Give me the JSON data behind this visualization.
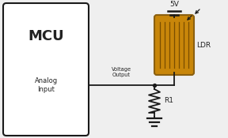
{
  "bg_color": "#efefef",
  "mcu_label": "MCU",
  "analog_label": "Analog\nInput",
  "voltage_label": "Voltage\nOutput",
  "power_label": "5V",
  "ldr_label": "LDR",
  "r1_label": "R1",
  "line_color": "#1a1a1a",
  "box_color": "#ffffff",
  "ldr_fill": "#c8860a",
  "ldr_stripe": "#7a4e00",
  "ldr_edge": "#8B6010",
  "font_color": "#222222"
}
